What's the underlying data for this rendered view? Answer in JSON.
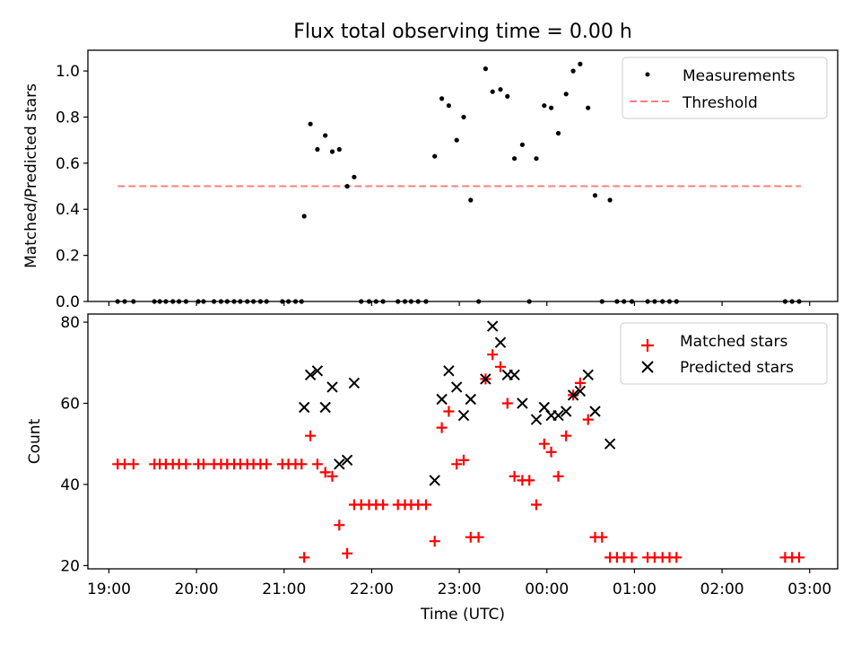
{
  "figure_title": "Flux total observing time = 0.00 h",
  "colors": {
    "measurement": "#000000",
    "threshold": "#ff7f7f",
    "matched": "#ff0000",
    "predicted": "#000000"
  },
  "chart_data": [
    {
      "type": "scatter",
      "ylabel": "Matched/Predicted stars",
      "xlabel": "",
      "x_unit": "hours since 00:00 UTC (negative = previous evening)",
      "xlim": [
        -5.24,
        3.32
      ],
      "ylim": [
        0,
        1.09
      ],
      "yticks": [
        "0.0",
        "0.2",
        "0.4",
        "0.6",
        "0.8",
        "1.0"
      ],
      "grid": false,
      "legend": {
        "position": "top-right",
        "entries": [
          "Measurements",
          "Threshold"
        ]
      },
      "threshold": {
        "name": "Threshold",
        "y": 0.5,
        "x_range": [
          -4.9,
          2.9
        ],
        "style": "dashed"
      },
      "series": [
        {
          "name": "Measurements",
          "marker": "dot",
          "points": [
            [
              -4.9,
              0
            ],
            [
              -4.82,
              0
            ],
            [
              -4.72,
              0
            ],
            [
              -4.48,
              0
            ],
            [
              -4.42,
              0
            ],
            [
              -4.35,
              0
            ],
            [
              -4.27,
              0
            ],
            [
              -4.2,
              0
            ],
            [
              -4.12,
              0
            ],
            [
              -3.98,
              0
            ],
            [
              -3.92,
              0
            ],
            [
              -3.8,
              0
            ],
            [
              -3.72,
              0
            ],
            [
              -3.65,
              0
            ],
            [
              -3.57,
              0
            ],
            [
              -3.5,
              0
            ],
            [
              -3.42,
              0
            ],
            [
              -3.35,
              0
            ],
            [
              -3.27,
              0
            ],
            [
              -3.2,
              0
            ],
            [
              -3.02,
              0
            ],
            [
              -2.95,
              0
            ],
            [
              -2.87,
              0
            ],
            [
              -2.8,
              0
            ],
            [
              -2.77,
              0.37
            ],
            [
              -2.7,
              0.77
            ],
            [
              -2.62,
              0.66
            ],
            [
              -2.53,
              0.72
            ],
            [
              -2.45,
              0.65
            ],
            [
              -2.37,
              0.66
            ],
            [
              -2.28,
              0.5
            ],
            [
              -2.2,
              0.54
            ],
            [
              -2.12,
              0
            ],
            [
              -2.03,
              0
            ],
            [
              -1.95,
              0
            ],
            [
              -1.87,
              0
            ],
            [
              -1.7,
              0
            ],
            [
              -1.62,
              0
            ],
            [
              -1.55,
              0
            ],
            [
              -1.47,
              0
            ],
            [
              -1.38,
              0
            ],
            [
              -1.28,
              0.63
            ],
            [
              -1.2,
              0.88
            ],
            [
              -1.12,
              0.85
            ],
            [
              -1.03,
              0.7
            ],
            [
              -0.95,
              0.8
            ],
            [
              -0.87,
              0.44
            ],
            [
              -0.78,
              0
            ],
            [
              -0.7,
              1.01
            ],
            [
              -0.62,
              0.91
            ],
            [
              -0.53,
              0.92
            ],
            [
              -0.45,
              0.89
            ],
            [
              -0.37,
              0.62
            ],
            [
              -0.28,
              0.68
            ],
            [
              -0.2,
              0
            ],
            [
              -0.12,
              0.62
            ],
            [
              -0.03,
              0.85
            ],
            [
              0.05,
              0.84
            ],
            [
              0.13,
              0.73
            ],
            [
              0.22,
              0.9
            ],
            [
              0.3,
              1.0
            ],
            [
              0.38,
              1.03
            ],
            [
              0.47,
              0.84
            ],
            [
              0.55,
              0.46
            ],
            [
              0.63,
              0
            ],
            [
              0.72,
              0.44
            ],
            [
              0.8,
              0
            ],
            [
              0.88,
              0
            ],
            [
              0.97,
              0
            ],
            [
              1.15,
              0
            ],
            [
              1.23,
              0
            ],
            [
              1.32,
              0
            ],
            [
              1.4,
              0
            ],
            [
              1.48,
              0
            ],
            [
              2.72,
              0
            ],
            [
              2.8,
              0
            ],
            [
              2.88,
              0
            ]
          ]
        }
      ]
    },
    {
      "type": "scatter",
      "ylabel": "Count",
      "xlabel": "Time (UTC)",
      "x_unit": "hours since 00:00 UTC (negative = previous evening)",
      "xlim": [
        -5.24,
        3.32
      ],
      "ylim": [
        19.2,
        82
      ],
      "yticks": [
        "20",
        "40",
        "60",
        "80"
      ],
      "xticks": [
        "19:00",
        "20:00",
        "21:00",
        "22:00",
        "23:00",
        "00:00",
        "01:00",
        "02:00",
        "03:00"
      ],
      "grid": false,
      "legend": {
        "position": "top-right",
        "entries": [
          "Matched stars",
          "Predicted stars"
        ]
      },
      "series": [
        {
          "name": "Matched stars",
          "marker": "plus",
          "points": [
            [
              -4.9,
              45
            ],
            [
              -4.82,
              45
            ],
            [
              -4.72,
              45
            ],
            [
              -4.48,
              45
            ],
            [
              -4.42,
              45
            ],
            [
              -4.35,
              45
            ],
            [
              -4.27,
              45
            ],
            [
              -4.2,
              45
            ],
            [
              -4.12,
              45
            ],
            [
              -3.98,
              45
            ],
            [
              -3.92,
              45
            ],
            [
              -3.8,
              45
            ],
            [
              -3.72,
              45
            ],
            [
              -3.65,
              45
            ],
            [
              -3.57,
              45
            ],
            [
              -3.5,
              45
            ],
            [
              -3.42,
              45
            ],
            [
              -3.35,
              45
            ],
            [
              -3.27,
              45
            ],
            [
              -3.2,
              45
            ],
            [
              -3.02,
              45
            ],
            [
              -2.95,
              45
            ],
            [
              -2.87,
              45
            ],
            [
              -2.8,
              45
            ],
            [
              -2.77,
              22
            ],
            [
              -2.7,
              52
            ],
            [
              -2.62,
              45
            ],
            [
              -2.53,
              43
            ],
            [
              -2.45,
              42
            ],
            [
              -2.37,
              30
            ],
            [
              -2.28,
              23
            ],
            [
              -2.2,
              35
            ],
            [
              -2.12,
              35
            ],
            [
              -2.03,
              35
            ],
            [
              -1.95,
              35
            ],
            [
              -1.87,
              35
            ],
            [
              -1.7,
              35
            ],
            [
              -1.62,
              35
            ],
            [
              -1.55,
              35
            ],
            [
              -1.47,
              35
            ],
            [
              -1.38,
              35
            ],
            [
              -1.28,
              26
            ],
            [
              -1.2,
              54
            ],
            [
              -1.12,
              58
            ],
            [
              -1.03,
              45
            ],
            [
              -0.95,
              46
            ],
            [
              -0.87,
              27
            ],
            [
              -0.78,
              27
            ],
            [
              -0.7,
              66
            ],
            [
              -0.62,
              72
            ],
            [
              -0.53,
              69
            ],
            [
              -0.45,
              60
            ],
            [
              -0.37,
              42
            ],
            [
              -0.28,
              41
            ],
            [
              -0.2,
              41
            ],
            [
              -0.12,
              35
            ],
            [
              -0.03,
              50
            ],
            [
              0.05,
              48
            ],
            [
              0.13,
              42
            ],
            [
              0.22,
              52
            ],
            [
              0.3,
              62
            ],
            [
              0.38,
              65
            ],
            [
              0.47,
              56
            ],
            [
              0.55,
              27
            ],
            [
              0.63,
              27
            ],
            [
              0.72,
              22
            ],
            [
              0.8,
              22
            ],
            [
              0.88,
              22
            ],
            [
              0.97,
              22
            ],
            [
              1.15,
              22
            ],
            [
              1.23,
              22
            ],
            [
              1.32,
              22
            ],
            [
              1.4,
              22
            ],
            [
              1.48,
              22
            ],
            [
              2.72,
              22
            ],
            [
              2.8,
              22
            ],
            [
              2.88,
              22
            ]
          ]
        },
        {
          "name": "Predicted stars",
          "marker": "x",
          "points": [
            [
              -2.77,
              59
            ],
            [
              -2.7,
              67
            ],
            [
              -2.62,
              68
            ],
            [
              -2.53,
              59
            ],
            [
              -2.45,
              64
            ],
            [
              -2.37,
              45
            ],
            [
              -2.28,
              46
            ],
            [
              -2.2,
              65
            ],
            [
              -1.28,
              41
            ],
            [
              -1.2,
              61
            ],
            [
              -1.12,
              68
            ],
            [
              -1.03,
              64
            ],
            [
              -0.95,
              57
            ],
            [
              -0.87,
              61
            ],
            [
              -0.7,
              66
            ],
            [
              -0.62,
              79
            ],
            [
              -0.53,
              75
            ],
            [
              -0.45,
              67
            ],
            [
              -0.37,
              67
            ],
            [
              -0.28,
              60
            ],
            [
              -0.12,
              56
            ],
            [
              -0.03,
              59
            ],
            [
              0.05,
              57
            ],
            [
              0.13,
              57
            ],
            [
              0.22,
              58
            ],
            [
              0.3,
              62
            ],
            [
              0.38,
              63
            ],
            [
              0.47,
              67
            ],
            [
              0.55,
              58
            ],
            [
              0.72,
              50
            ]
          ]
        }
      ]
    }
  ]
}
